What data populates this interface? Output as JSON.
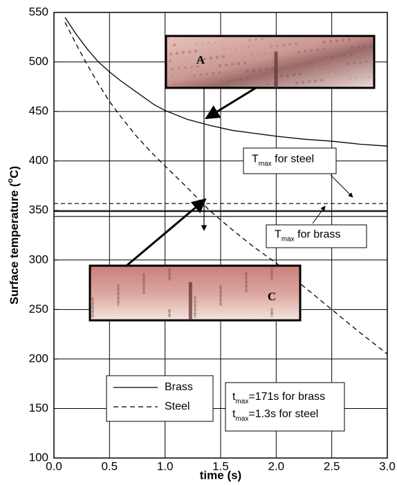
{
  "chart_data": {
    "type": "line",
    "xlabel": "time (s)",
    "ylabel": {
      "text": "Surface temperature (",
      "sup": "o",
      "rest": "C)"
    },
    "xlim": [
      0,
      3
    ],
    "ylim": [
      100,
      550
    ],
    "xticks": [
      {
        "value": 0,
        "label": "0.0"
      },
      0.5,
      {
        "value": 1,
        "label": "1.0"
      },
      1.5,
      {
        "value": 2,
        "label": "2.0"
      },
      2.5,
      {
        "value": 3,
        "label": "3.0"
      }
    ],
    "yticks": [
      100,
      150,
      200,
      250,
      300,
      350,
      400,
      450,
      500,
      550
    ],
    "grid": true,
    "legend": "bottom-left",
    "series": [
      {
        "name": "Brass",
        "color": "#000000",
        "dash": false,
        "x": [
          0.1,
          0.2,
          0.3,
          0.4,
          0.5,
          0.6,
          0.75,
          0.9,
          1.0,
          1.2,
          1.4,
          1.6,
          1.8,
          2.0,
          2.25,
          2.5,
          2.75,
          3.0
        ],
        "values": [
          545,
          528,
          513,
          500,
          490,
          481,
          469,
          457,
          451,
          442,
          436,
          431,
          428,
          425,
          422,
          420,
          417,
          415
        ]
      },
      {
        "name": "Steel",
        "color": "#000000",
        "dash": true,
        "x": [
          0.1,
          0.2,
          0.3,
          0.4,
          0.5,
          0.6,
          0.75,
          0.9,
          1.0,
          1.2,
          1.4,
          1.6,
          1.8,
          2.0,
          2.25,
          2.5,
          2.75,
          3.0
        ],
        "values": [
          540,
          518,
          497,
          478,
          460,
          445,
          424,
          406,
          395,
          373,
          350,
          331,
          313,
          297,
          273,
          250,
          227,
          205
        ]
      }
    ],
    "hlines": [
      {
        "value": 357,
        "dash": true
      },
      {
        "value": 349,
        "dash": false
      },
      {
        "value": 344,
        "dash": false
      }
    ],
    "annotations": [
      {
        "text": "T",
        "sub": "max",
        "rest": " for steel"
      },
      {
        "text": "T",
        "sub": "max",
        "rest": " for brass"
      }
    ],
    "notes": [
      {
        "text": "t",
        "sub": "max",
        "rest": "=171s for brass"
      },
      {
        "text": "t",
        "sub": "max",
        "rest": "=1.3s for steel"
      }
    ],
    "images": [
      {
        "label": "A"
      },
      {
        "label": "C"
      }
    ]
  }
}
